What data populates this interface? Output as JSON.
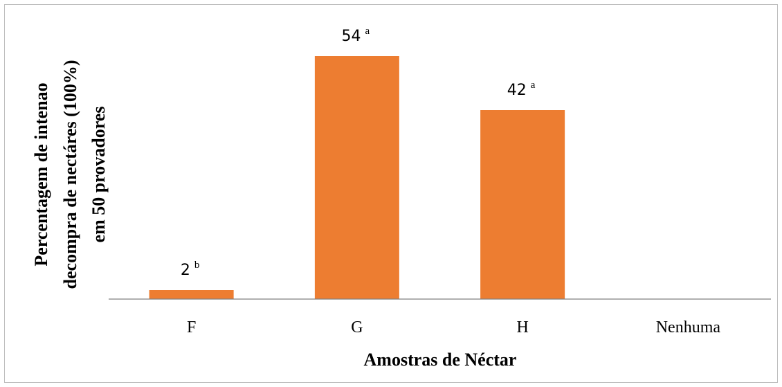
{
  "chart_data": {
    "type": "bar",
    "categories": [
      "F",
      "G",
      "H",
      "Nenhuma"
    ],
    "values": [
      2,
      54,
      42,
      0
    ],
    "data_labels": [
      "2",
      "54",
      "42",
      ""
    ],
    "significance_letters": [
      "b",
      "a",
      "a",
      ""
    ],
    "title": "",
    "xlabel": "Amostras de Néctar",
    "ylabel_lines": [
      "Percentagem de intenao",
      "decompra de nectáres (100%)",
      "em 50 provadores"
    ],
    "ylim": [
      0,
      54
    ],
    "grid": false,
    "legend": "none",
    "bar_color": "#ED7D31",
    "axis_color": "#7f7f7f"
  }
}
